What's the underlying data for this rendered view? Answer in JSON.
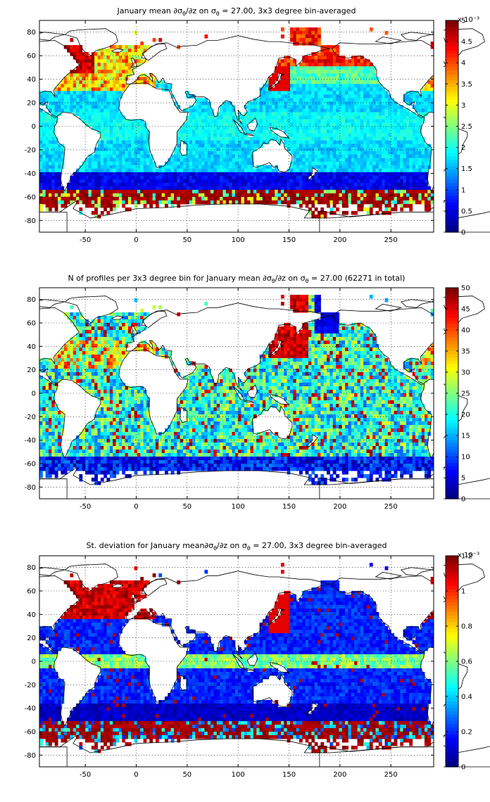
{
  "chart_data": [
    {
      "type": "heatmap",
      "title_parts": [
        "January mean ",
        "∂σ",
        "θ",
        "/∂z on σ",
        "θ",
        " = 27.00, 3x3 degree bin-averaged"
      ],
      "x_range": [
        -95,
        292
      ],
      "y_range": [
        -90,
        90
      ],
      "x_ticks": [
        -50,
        0,
        50,
        100,
        150,
        200,
        250
      ],
      "y_ticks": [
        80,
        60,
        40,
        20,
        0,
        -20,
        -40,
        -60,
        -80
      ],
      "grid": "dotted",
      "colorbar": {
        "range": [
          0,
          5
        ],
        "ticks": [
          "0",
          "0.5",
          "1",
          "1.5",
          "2",
          "2.5",
          "3",
          "3.5",
          "4",
          "4.5",
          "5"
        ],
        "exponent": "x 10⁻³",
        "colormap": "jet"
      },
      "pattern": "mean"
    },
    {
      "type": "heatmap",
      "title_parts": [
        "N of profiles per 3x3 degree bin for January mean ",
        "∂σ",
        "θ",
        "/∂z on σ",
        "θ",
        " = 27.00 (62271 in total)"
      ],
      "x_range": [
        -95,
        292
      ],
      "y_range": [
        -90,
        90
      ],
      "x_ticks": [
        -50,
        0,
        50,
        100,
        150,
        200,
        250
      ],
      "y_ticks": [
        80,
        60,
        40,
        20,
        0,
        -20,
        -40,
        -60,
        -80
      ],
      "grid": "dotted",
      "colorbar": {
        "range": [
          0,
          50
        ],
        "ticks": [
          "0",
          "5",
          "10",
          "15",
          "20",
          "25",
          "30",
          "35",
          "40",
          "45",
          "50"
        ],
        "exponent": "",
        "colormap": "jet"
      },
      "pattern": "count"
    },
    {
      "type": "heatmap",
      "title_parts": [
        "St. deviation for January mean",
        "∂σ",
        "θ",
        "/∂z on σ",
        "θ",
        " = 27.00, 3x3 degree bin-averaged"
      ],
      "x_range": [
        -95,
        292
      ],
      "y_range": [
        -90,
        90
      ],
      "x_ticks": [
        -50,
        0,
        50,
        100,
        150,
        200,
        250
      ],
      "y_ticks": [
        80,
        60,
        40,
        20,
        0,
        -20,
        -40,
        -60,
        -80
      ],
      "grid": "dotted",
      "colorbar": {
        "range": [
          0,
          1.2
        ],
        "ticks": [
          "0",
          "0.2",
          "0.4",
          "0.6",
          "0.8",
          "1",
          "1.2"
        ],
        "exponent": "x 10⁻³",
        "colormap": "jet"
      },
      "pattern": "std"
    }
  ]
}
